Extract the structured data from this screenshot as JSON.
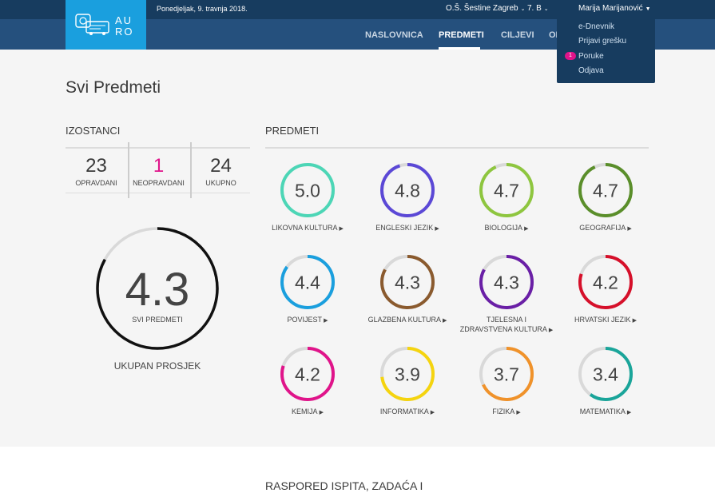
{
  "app": {
    "logo_text_line1": "AU",
    "logo_text_line2": "RO"
  },
  "topbar": {
    "date": "Ponedjeljak, 9. travnja 2018.",
    "school": "O.Š. Šestine Zagreb",
    "class": "7. B",
    "user": "Marija Marijanović"
  },
  "nav": {
    "items": [
      "NASLOVNICA",
      "PREDMETI",
      "CILJEVI",
      "OI"
    ],
    "active": "PREDMETI"
  },
  "user_menu": {
    "items": [
      "e-Dnevnik",
      "Prijavi grešku",
      "Poruke",
      "Odjava"
    ],
    "messages_badge": "1"
  },
  "page": {
    "title": "Svi Predmeti"
  },
  "absences": {
    "section_label": "IZOSTANCI",
    "items": [
      {
        "value": "23",
        "label": "OPRAVDANI"
      },
      {
        "value": "1",
        "label": "NEOPRAVDANI"
      },
      {
        "value": "24",
        "label": "UKUPNO"
      }
    ]
  },
  "overall": {
    "value": "4.3",
    "label": "SVI PREDMETI",
    "caption": "UKUPAN PROSJEK",
    "fraction": 0.83,
    "color": "#111111"
  },
  "subjects": {
    "section_label": "PREDMETI",
    "items": [
      {
        "value": "5.0",
        "label": "LIKOVNA KULTURA",
        "color": "#4cd6b6",
        "fraction": 1.0
      },
      {
        "value": "4.8",
        "label": "ENGLESKI JEZIK",
        "color": "#5b48d6",
        "fraction": 0.95
      },
      {
        "value": "4.7",
        "label": "BIOLOGIJA",
        "color": "#8ec63f",
        "fraction": 0.93
      },
      {
        "value": "4.7",
        "label": "GEOGRAFIJA",
        "color": "#5a8e2a",
        "fraction": 0.93
      },
      {
        "value": "4.4",
        "label": "POVIJEST",
        "color": "#1a9fde",
        "fraction": 0.85
      },
      {
        "value": "4.3",
        "label": "GLAZBENA KULTURA",
        "color": "#8a5a2e",
        "fraction": 0.83
      },
      {
        "value": "4.3",
        "label": "TJELESNA I\nZDRAVSTVENA KULTURA",
        "color": "#6a1fa6",
        "fraction": 0.83
      },
      {
        "value": "4.2",
        "label": "HRVATSKI JEZIK",
        "color": "#d6102a",
        "fraction": 0.8
      },
      {
        "value": "4.2",
        "label": "KEMIJA",
        "color": "#e0148a",
        "fraction": 0.8
      },
      {
        "value": "3.9",
        "label": "INFORMATIKA",
        "color": "#f5d40f",
        "fraction": 0.73
      },
      {
        "value": "3.7",
        "label": "FIZIKA",
        "color": "#f0922a",
        "fraction": 0.68
      },
      {
        "value": "3.4",
        "label": "MATEMATIKA",
        "color": "#1aa59a",
        "fraction": 0.6
      }
    ]
  },
  "schedule": {
    "title": "RASPORED ISPITA, ZADAĆA I OSTALIH ZADATAKA"
  }
}
